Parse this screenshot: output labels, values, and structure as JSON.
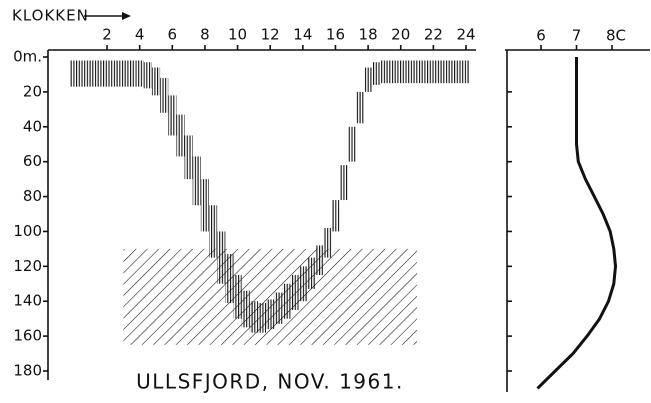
{
  "chart_data": [
    {
      "type": "range",
      "title": "ULLSFJORD, NOV. 1961.",
      "x_label": "KLOKKEN",
      "xlim": [
        0,
        24
      ],
      "xticks": [
        2,
        4,
        6,
        8,
        10,
        12,
        14,
        16,
        18,
        20,
        22,
        24
      ],
      "ylim": [
        0,
        180
      ],
      "yticks": [
        {
          "value": 0,
          "label": "0m."
        },
        20,
        40,
        60,
        80,
        100,
        120,
        140,
        160,
        180
      ],
      "x": [
        0,
        0.5,
        1,
        1.5,
        2,
        2.5,
        3,
        3.5,
        4,
        4.5,
        5,
        5.5,
        6,
        6.5,
        7,
        7.5,
        8,
        8.5,
        9,
        9.5,
        10,
        10.5,
        11,
        11.5,
        12,
        12.5,
        13,
        13.5,
        14,
        14.5,
        15,
        15.5,
        16,
        16.5,
        17,
        17.5,
        18,
        18.5,
        19,
        19.5,
        20,
        20.5,
        21,
        21.5,
        22,
        22.5,
        23,
        23.5,
        24
      ],
      "top": [
        2,
        2,
        2,
        2,
        2,
        2,
        2,
        2,
        2,
        3,
        6,
        12,
        22,
        33,
        45,
        57,
        70,
        85,
        100,
        113,
        125,
        134,
        140,
        141,
        139,
        135,
        130,
        125,
        120,
        115,
        108,
        98,
        82,
        62,
        40,
        20,
        6,
        3,
        2,
        2,
        2,
        2,
        2,
        2,
        2,
        2,
        2,
        2,
        2
      ],
      "bottom": [
        17,
        17,
        17,
        17,
        17,
        17,
        17,
        17,
        17,
        18,
        22,
        32,
        45,
        57,
        70,
        85,
        100,
        115,
        130,
        141,
        150,
        155,
        158,
        158,
        156,
        153,
        150,
        145,
        140,
        133,
        125,
        115,
        100,
        82,
        60,
        38,
        20,
        16,
        15,
        15,
        15,
        15,
        15,
        15,
        15,
        15,
        15,
        15,
        15
      ],
      "color": "#111",
      "shaded_region": {
        "x": [
          3,
          21
        ],
        "y": [
          110,
          165
        ]
      }
    },
    {
      "type": "line",
      "xlim": [
        6,
        8
      ],
      "xticks": [
        6,
        7,
        {
          "value": 8,
          "label": "8C"
        }
      ],
      "ylim": [
        0,
        180
      ],
      "yticks": [
        20,
        40,
        60,
        80,
        100,
        120,
        140,
        160,
        180
      ],
      "y": [
        0,
        20,
        40,
        50,
        60,
        70,
        80,
        90,
        100,
        110,
        120,
        130,
        140,
        150,
        160,
        170,
        180,
        190
      ],
      "x": [
        7.0,
        7.0,
        7.0,
        7.0,
        7.05,
        7.25,
        7.5,
        7.75,
        7.95,
        8.05,
        8.1,
        8.05,
        7.9,
        7.65,
        7.3,
        6.9,
        6.4,
        5.9
      ],
      "color": "#111"
    }
  ]
}
